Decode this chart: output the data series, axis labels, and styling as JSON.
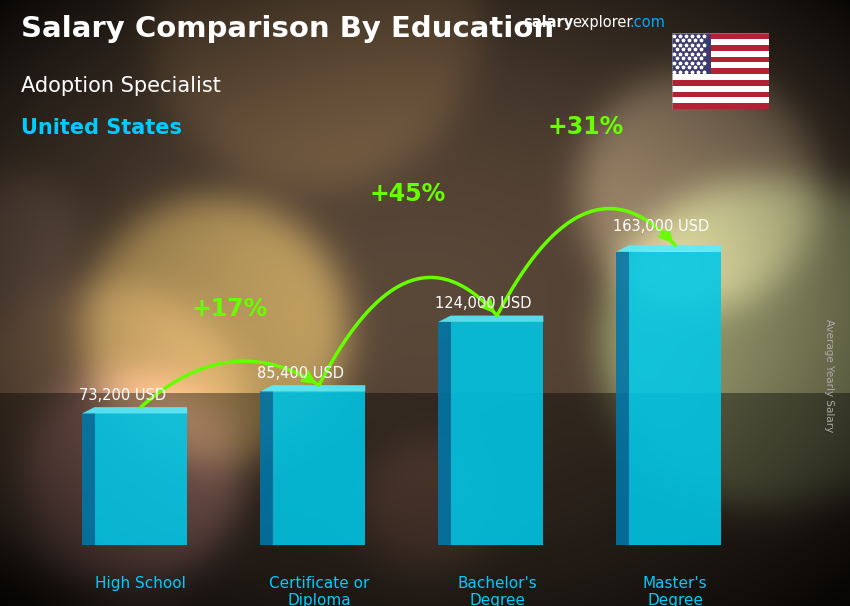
{
  "title": "Salary Comparison By Education",
  "subtitle": "Adoption Specialist",
  "country": "United States",
  "ylabel": "Average Yearly Salary",
  "website_salary": "salary",
  "website_explorer": "explorer",
  "website_dot_com": ".com",
  "categories": [
    "High School",
    "Certificate or\nDiploma",
    "Bachelor's\nDegree",
    "Master's\nDegree"
  ],
  "values": [
    73200,
    85400,
    124000,
    163000
  ],
  "value_labels": [
    "73,200 USD",
    "85,400 USD",
    "124,000 USD",
    "163,000 USD"
  ],
  "pct_labels": [
    "+17%",
    "+45%",
    "+31%"
  ],
  "bar_color_main": "#00c8e8",
  "bar_color_left": "#0077aa",
  "bar_color_top": "#55eeff",
  "bar_color_right": "#008ab0",
  "arrow_color": "#66ff00",
  "pct_color": "#66ff00",
  "title_color": "#ffffff",
  "subtitle_color": "#ffffff",
  "country_color": "#00ccff",
  "value_label_color": "#ffffff",
  "xticklabel_color": "#00ccff",
  "ylabel_color": "#aaaaaa",
  "website_salary_color": "#ffffff",
  "website_explorer_color": "#ffffff",
  "website_com_color": "#00aaff",
  "bg_color": "#2a2a2a",
  "ylim": [
    0,
    195000
  ],
  "bar_positions": [
    0,
    1,
    2,
    3
  ],
  "bar_width": 0.52,
  "figsize": [
    8.5,
    6.06
  ],
  "dpi": 100
}
